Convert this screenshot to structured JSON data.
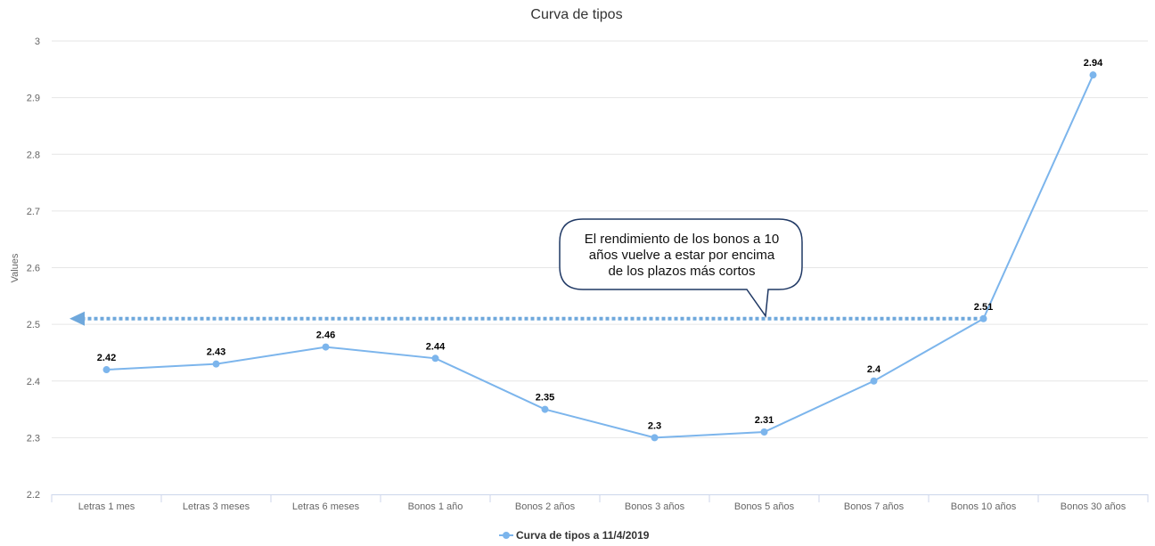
{
  "chart_data": {
    "type": "line",
    "title": "Curva de tipos",
    "xlabel": "",
    "ylabel": "Values",
    "categories": [
      "Letras 1 mes",
      "Letras 3 meses",
      "Letras 6 meses",
      "Bonos 1 año",
      "Bonos 2 años",
      "Bonos 3 años",
      "Bonos 5 años",
      "Bonos 7 años",
      "Bonos 10 años",
      "Bonos 30 años"
    ],
    "series": [
      {
        "name": "Curva de tipos a 11/4/2019",
        "values": [
          2.42,
          2.43,
          2.46,
          2.44,
          2.35,
          2.3,
          2.31,
          2.4,
          2.51,
          2.94
        ],
        "labels": [
          "2.42",
          "2.43",
          "2.46",
          "2.44",
          "2.35",
          "2.3",
          "2.31",
          "2.4",
          "2.51",
          "2.94"
        ]
      }
    ],
    "ylim": [
      2.2,
      3
    ],
    "yticks": [
      "2.2",
      "2.3",
      "2.4",
      "2.5",
      "2.6",
      "2.7",
      "2.8",
      "2.9",
      "3"
    ],
    "grid": true,
    "legend_position": "bottom-center",
    "series_color": "#7cb5ec",
    "annotation": {
      "text_lines": [
        "El rendimiento de los bonos a 10",
        "años vuelve a estar por encima",
        "de los plazos más cortos"
      ],
      "reference_value": 2.51,
      "arrow_color": "#6fa8dc",
      "bubble_border_color": "#1f3864"
    }
  }
}
